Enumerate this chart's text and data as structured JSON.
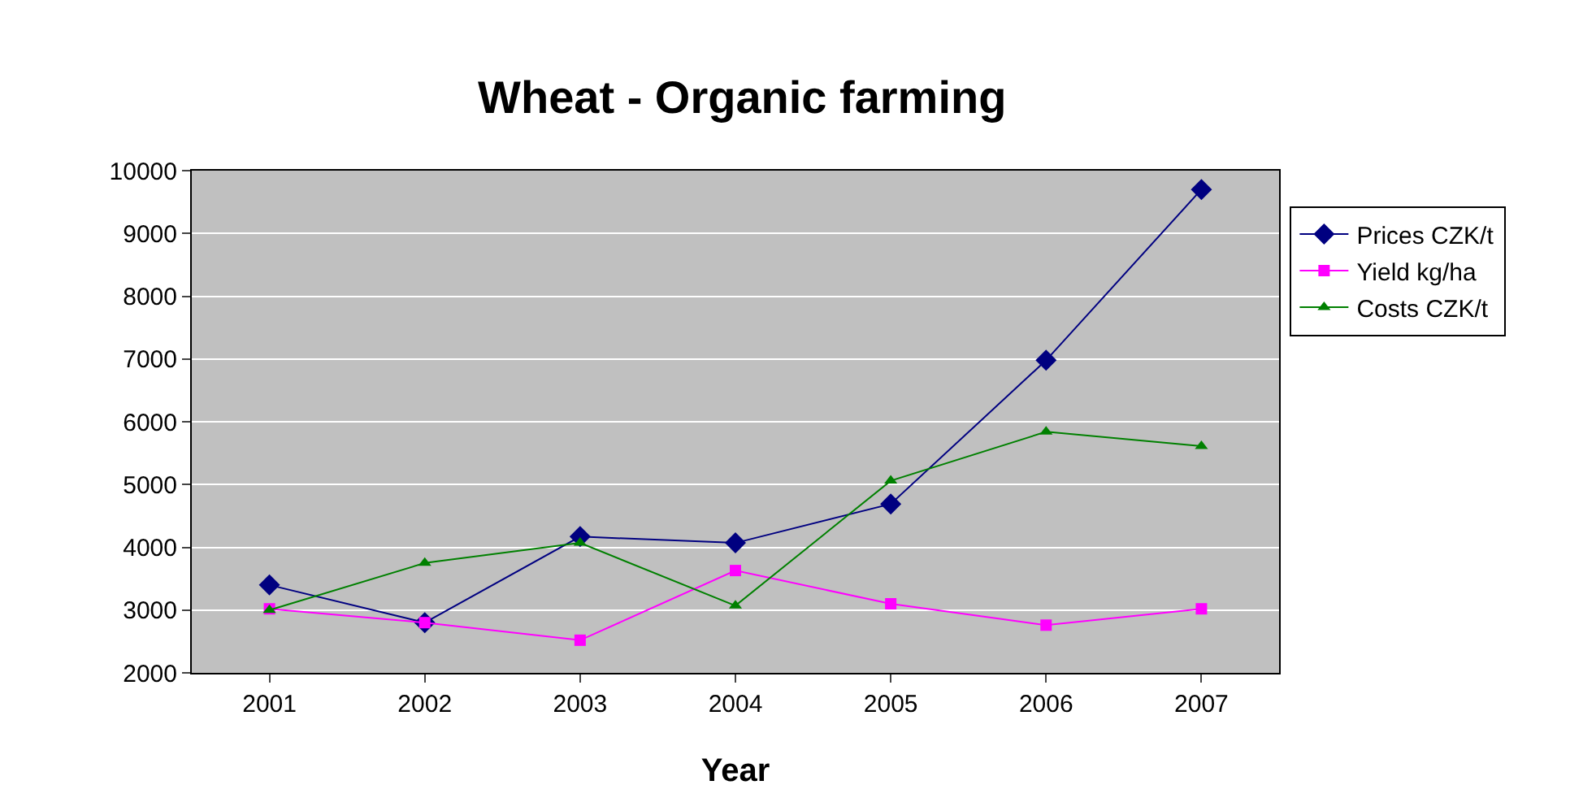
{
  "chart_data": {
    "type": "line",
    "title": "Wheat - Organic farming",
    "xlabel": "Year",
    "categories": [
      "2001",
      "2002",
      "2003",
      "2004",
      "2005",
      "2006",
      "2007"
    ],
    "series": [
      {
        "name": "Prices CZK/t",
        "color": "#000080",
        "marker": "diamond",
        "values": [
          3400,
          2800,
          4170,
          4070,
          4690,
          6980,
          9700
        ]
      },
      {
        "name": "Yield kg/ha",
        "color": "#ff00ff",
        "marker": "square",
        "values": [
          3020,
          2800,
          2520,
          3630,
          3100,
          2760,
          3020
        ]
      },
      {
        "name": "Costs CZK/t",
        "color": "#008000",
        "marker": "triangle",
        "values": [
          3000,
          3750,
          4070,
          3070,
          5060,
          5840,
          5610
        ]
      }
    ],
    "ylim": [
      2000,
      10000
    ],
    "yticks": [
      2000,
      3000,
      4000,
      5000,
      6000,
      7000,
      8000,
      9000,
      10000
    ],
    "grid": "y",
    "legend": "right",
    "line_style": "solid"
  }
}
